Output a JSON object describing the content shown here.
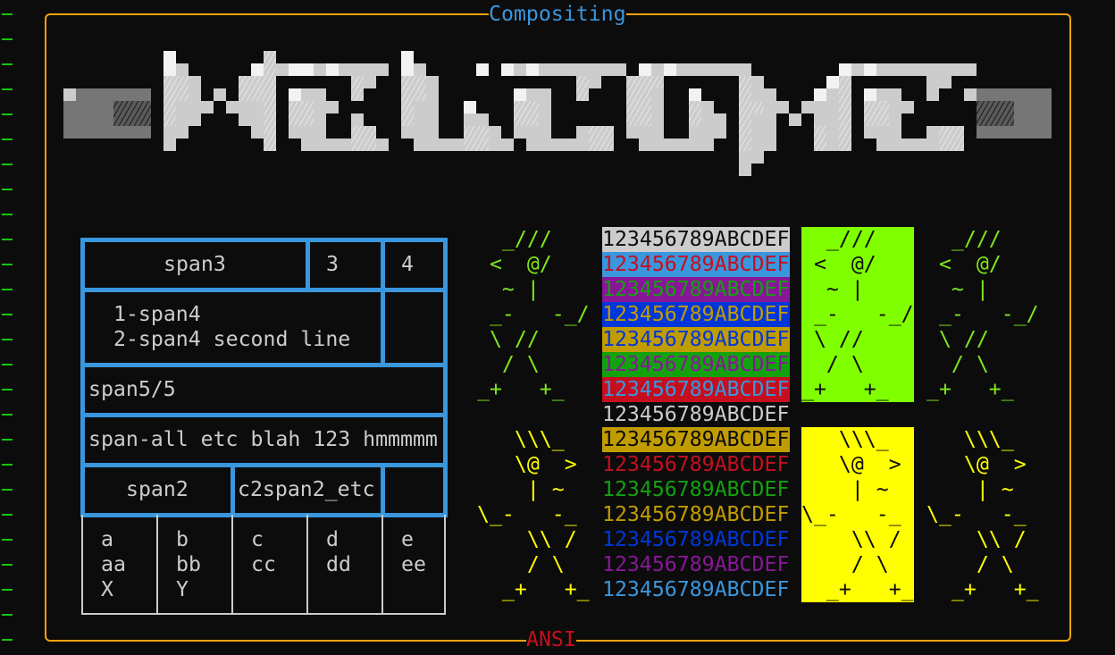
{
  "window": {
    "title": "Compositing",
    "subtitle": "ANSI"
  },
  "colors": {
    "border": "#f7a30c",
    "table_border": "#3a96dd",
    "title": "#3a96dd",
    "subtitle": "#c50f1f",
    "gutter_mark": "#16c60c"
  },
  "logo": {
    "icon": "blocky-pixel-logo"
  },
  "table": {
    "row1": {
      "a": "span3",
      "b": "3",
      "c": "4"
    },
    "row2": {
      "line1": "1-span4",
      "line2": "2-span4 second line"
    },
    "row3": {
      "text": "span5/5"
    },
    "row4": {
      "text": "span-all etc blah 123 hmmmmm"
    },
    "row5": {
      "a": "span2",
      "b": "c2span2_etc"
    },
    "columns": [
      {
        "l1": "a",
        "l2": "aa",
        "l3": "X"
      },
      {
        "l1": "b",
        "l2": "bb",
        "l3": "Y"
      },
      {
        "l1": "c",
        "l2": "cc",
        "l3": ""
      },
      {
        "l1": "d",
        "l2": "dd",
        "l3": ""
      },
      {
        "l1": "e",
        "l2": "ee",
        "l3": ""
      }
    ]
  },
  "figures": {
    "green": {
      "color": "#7fe81a",
      "box_bg": "#7fff00",
      "lines": [
        "  _///",
        " <  @/",
        "  ~ |",
        " _-   -_/",
        " \\ //",
        "  / \\",
        "_+   +_"
      ]
    },
    "yellow": {
      "color": "#ffff00",
      "box_bg": "#ffff00",
      "lines": [
        "   \\\\\\_",
        "   \\@  >",
        "    | ~",
        "\\_-   -_",
        "    \\\\ /",
        "    / \\",
        "  _+   +_"
      ]
    }
  },
  "color_strips": [
    {
      "text": "123456789ABCDEF",
      "bg": "#cccccc",
      "fg": "#0c0c0c"
    },
    {
      "text": "123456789ABCDEF",
      "bg": "#3a96dd",
      "fg": "#c50f1f"
    },
    {
      "text": "123456789ABCDEF",
      "bg": "#881798",
      "fg": "#13a10e"
    },
    {
      "text": "123456789ABCDEF",
      "bg": "#0037da",
      "fg": "#c19c00"
    },
    {
      "text": "123456789ABCDEF",
      "bg": "#c19c00",
      "fg": "#0037da"
    },
    {
      "text": "123456789ABCDEF",
      "bg": "#13a10e",
      "fg": "#881798"
    },
    {
      "text": "123456789ABCDEF",
      "bg": "#c50f1f",
      "fg": "#3a96dd"
    },
    {
      "text": "123456789ABCDEF",
      "bg": "",
      "fg": "#cccccc"
    },
    {
      "text": "123456789ABCDEF",
      "bg": "#c19c00",
      "fg": "#0c0c0c"
    },
    {
      "text": "123456789ABCDEF",
      "bg": "",
      "fg": "#c50f1f"
    },
    {
      "text": "123456789ABCDEF",
      "bg": "",
      "fg": "#13a10e"
    },
    {
      "text": "123456789ABCDEF",
      "bg": "",
      "fg": "#c19c00"
    },
    {
      "text": "123456789ABCDEF",
      "bg": "",
      "fg": "#0037da"
    },
    {
      "text": "123456789ABCDEF",
      "bg": "",
      "fg": "#881798"
    },
    {
      "text": "123456789ABCDEF",
      "bg": "",
      "fg": "#3a96dd"
    }
  ]
}
